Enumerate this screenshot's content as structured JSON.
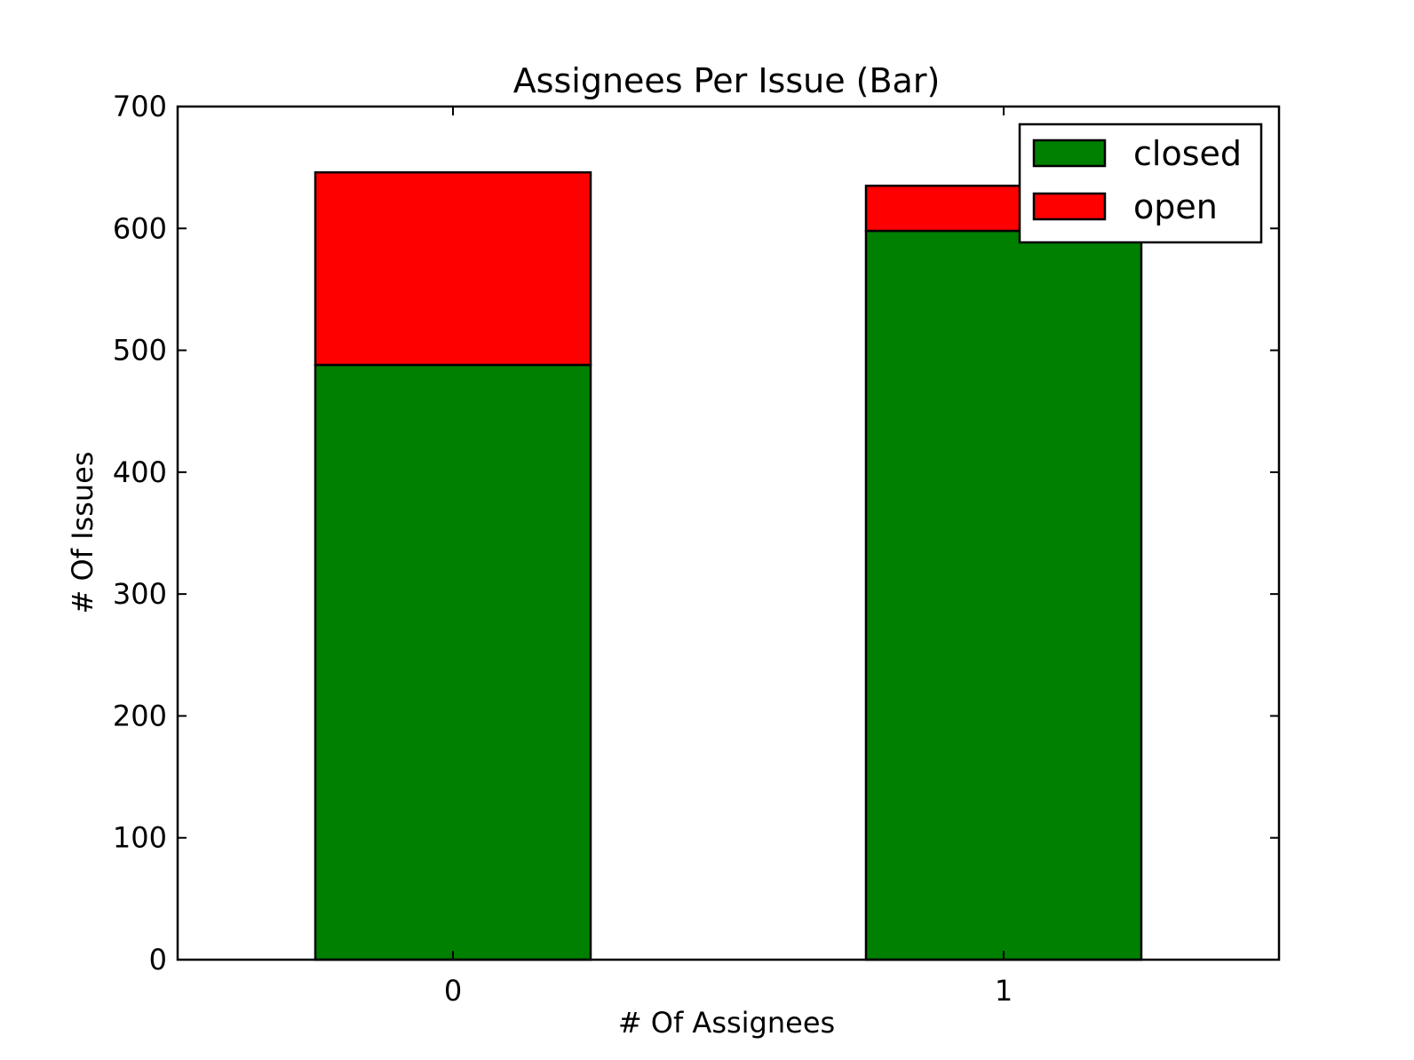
{
  "chart_data": {
    "type": "bar",
    "stacked": true,
    "title": "Assignees Per Issue (Bar)",
    "xlabel": "# Of Assignees",
    "ylabel": "# Of Issues",
    "categories": [
      "0",
      "1"
    ],
    "series": [
      {
        "name": "closed",
        "color": "#008000",
        "values": [
          488,
          598
        ]
      },
      {
        "name": "open",
        "color": "#ff0000",
        "values": [
          158,
          37
        ]
      }
    ],
    "ylim": [
      0,
      700
    ],
    "yticks": [
      "0",
      "100",
      "200",
      "300",
      "400",
      "500",
      "600",
      "700"
    ],
    "grid": false,
    "legend_position": "top-right"
  }
}
